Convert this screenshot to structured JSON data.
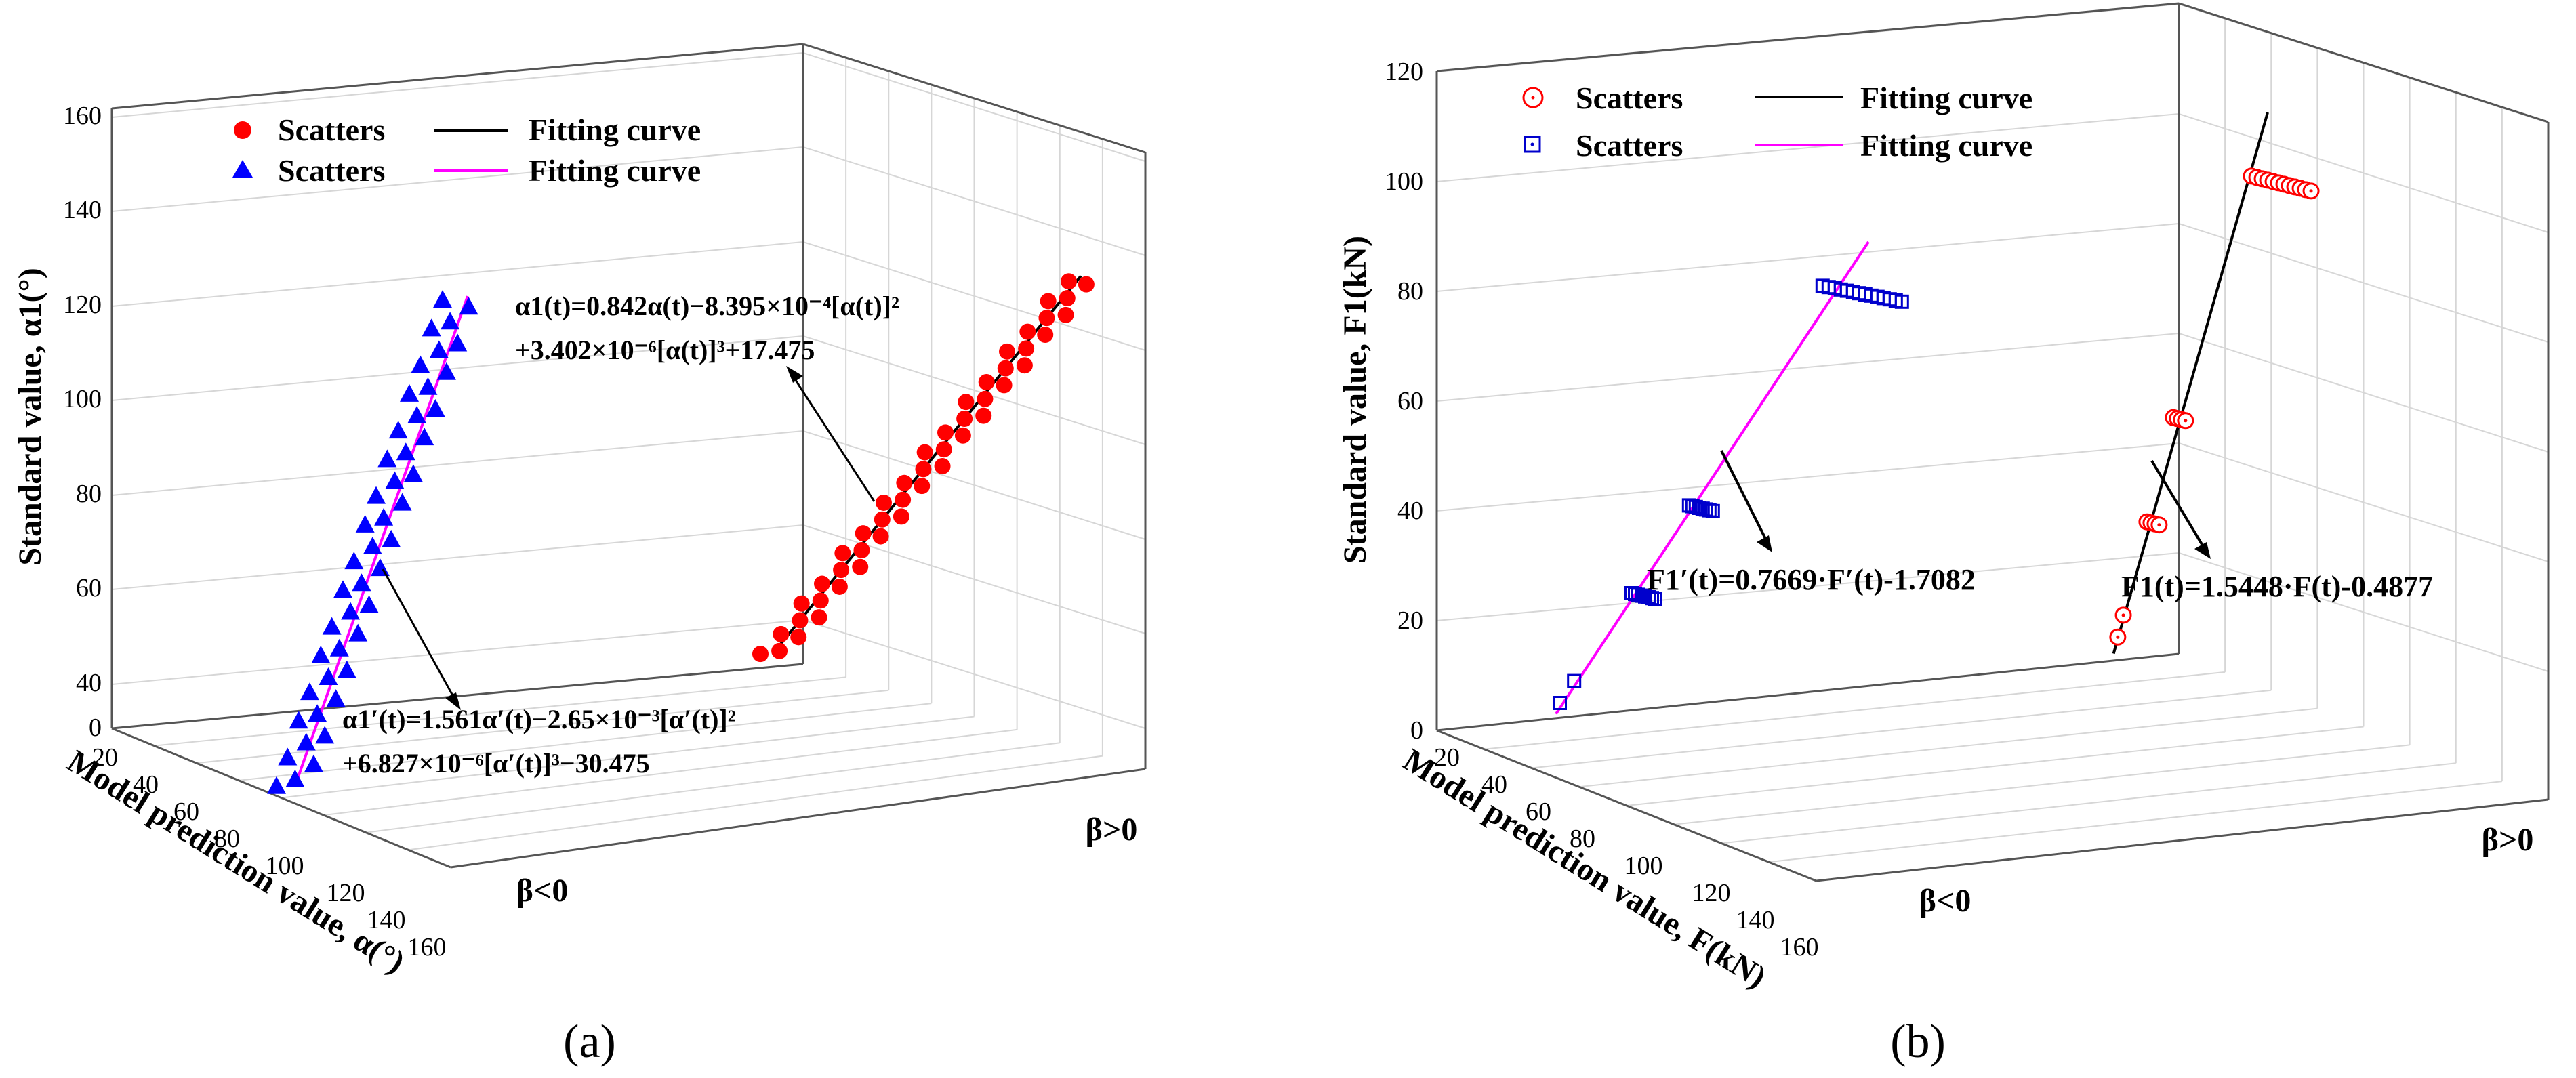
{
  "chart_data": [
    {
      "panel": "(a)",
      "type": "scatter",
      "ylabel": "Standard value, α1(°)",
      "xlabel": "Model prediction value, α(°)",
      "y_ticks": [
        "0",
        "40",
        "60",
        "80",
        "100",
        "120",
        "140",
        "160"
      ],
      "depth_ticks": [
        "20",
        "40",
        "60",
        "80",
        "100",
        "120",
        "140",
        "160"
      ],
      "side_labels": [
        "β<0",
        "β>0"
      ],
      "legend": [
        {
          "marker": "Scatters",
          "line": "Fitting curve"
        },
        {
          "marker": "Scatters",
          "line": "Fitting curve"
        }
      ],
      "equations": {
        "beta_pos_l1": "α1(t)=0.842α(t)−8.395×10⁻⁴[α(t)]²",
        "beta_pos_l2": "+3.402×10⁻⁶[α(t)]³+17.475",
        "beta_neg_l1": "α1′(t)=1.561α′(t)−2.65×10⁻³[α′(t)]²",
        "beta_neg_l2": "+6.827×10⁻⁶[α′(t)]³−30.475"
      },
      "series": [
        {
          "name": "β<0",
          "marker": "triangle",
          "color": "#0000ff",
          "curve_color": "#ff00ff",
          "y_range": [
            32,
            125
          ],
          "count": 46
        },
        {
          "name": "β>0",
          "marker": "circle",
          "color": "#ff0000",
          "curve_color": "#000000",
          "y_range": [
            45,
            130
          ],
          "count": 46
        }
      ],
      "caption": "(a)"
    },
    {
      "panel": "(b)",
      "type": "scatter",
      "ylabel": "Standard value, F1(kN)",
      "xlabel": "Model prediction value, F(kN)",
      "y_ticks": [
        "0",
        "20",
        "40",
        "60",
        "80",
        "100",
        "120"
      ],
      "depth_ticks": [
        "20",
        "40",
        "60",
        "80",
        "100",
        "120",
        "140",
        "160"
      ],
      "side_labels": [
        "β<0",
        "β>0"
      ],
      "legend": [
        {
          "marker": "Scatters",
          "line": "Fitting curve"
        },
        {
          "marker": "Scatters",
          "line": "Fitting curve"
        }
      ],
      "equations": {
        "beta_neg": "F1′(t)=0.7669·F′(t)-1.7082",
        "beta_pos": "F1(t)=1.5448·F(t)-0.4877"
      },
      "series": [
        {
          "name": "β<0",
          "marker": "open-square",
          "color": "#0000cc",
          "curve_color": "#ff00ff",
          "clusters_y": [
            5,
            9,
            25,
            41,
            81
          ]
        },
        {
          "name": "β>0",
          "marker": "open-circle",
          "color": "#ff0000",
          "curve_color": "#000000",
          "clusters_y": [
            17,
            21,
            38,
            57,
            101
          ]
        }
      ],
      "caption": "(b)"
    }
  ]
}
